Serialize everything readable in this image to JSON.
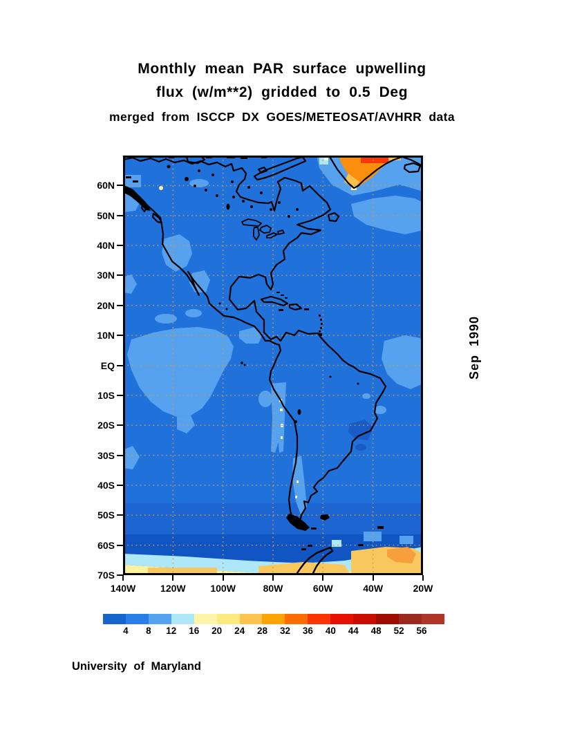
{
  "title": {
    "line1": "Monthly mean PAR surface upwelling",
    "line2": "flux (w/m**2) gridded to 0.5 Deg",
    "line3": "merged from ISCCP DX GOES/METEOSAT/AVHRR data"
  },
  "side_date": "Sep 1990",
  "credit": "University of Maryland",
  "axes": {
    "lat": [
      {
        "deg": 60,
        "label": "60N"
      },
      {
        "deg": 50,
        "label": "50N"
      },
      {
        "deg": 40,
        "label": "40N"
      },
      {
        "deg": 30,
        "label": "30N"
      },
      {
        "deg": 20,
        "label": "20N"
      },
      {
        "deg": 10,
        "label": "10N"
      },
      {
        "deg": 0,
        "label": "EQ"
      },
      {
        "deg": -10,
        "label": "10S"
      },
      {
        "deg": -20,
        "label": "20S"
      },
      {
        "deg": -30,
        "label": "30S"
      },
      {
        "deg": -40,
        "label": "40S"
      },
      {
        "deg": -50,
        "label": "50S"
      },
      {
        "deg": -60,
        "label": "60S"
      },
      {
        "deg": -70,
        "label": "70S"
      }
    ],
    "lon": [
      {
        "deg": -140,
        "label": "140W"
      },
      {
        "deg": -120,
        "label": "120W"
      },
      {
        "deg": -100,
        "label": "100W"
      },
      {
        "deg": -80,
        "label": "80W"
      },
      {
        "deg": -60,
        "label": "60W"
      },
      {
        "deg": -40,
        "label": "40W"
      },
      {
        "deg": -20,
        "label": "20W"
      }
    ]
  },
  "colorbar": {
    "values": [
      "4",
      "8",
      "12",
      "16",
      "20",
      "24",
      "28",
      "32",
      "36",
      "40",
      "44",
      "48",
      "52",
      "56"
    ],
    "colors": [
      "#1565cd",
      "#2a7ee8",
      "#55a2ef",
      "#aee7f8",
      "#fdf6aa",
      "#fce97f",
      "#fcc44f",
      "#fda402",
      "#fd6d00",
      "#fc3500",
      "#e81000",
      "#c90d00",
      "#9e0c00",
      "#9c2920",
      "#b13428"
    ]
  },
  "colors": {
    "ocean": "#2171da",
    "light": "#57a2ee",
    "band1": "#1d66d1",
    "band2": "#1155c2",
    "cyan": "#aee7f7",
    "pale_yellow": "#fdf2a0",
    "gold": "#f8c85e",
    "orange": "#f5a03c",
    "greenland_orange": "#fb8e0d",
    "greenland_red": "#f7380a",
    "greenland_gold": "#f6c14e",
    "dark_patch": "#1a5cc5",
    "near_white": "#eef8fb",
    "grid": "#c49a52",
    "coast": "#000000"
  }
}
